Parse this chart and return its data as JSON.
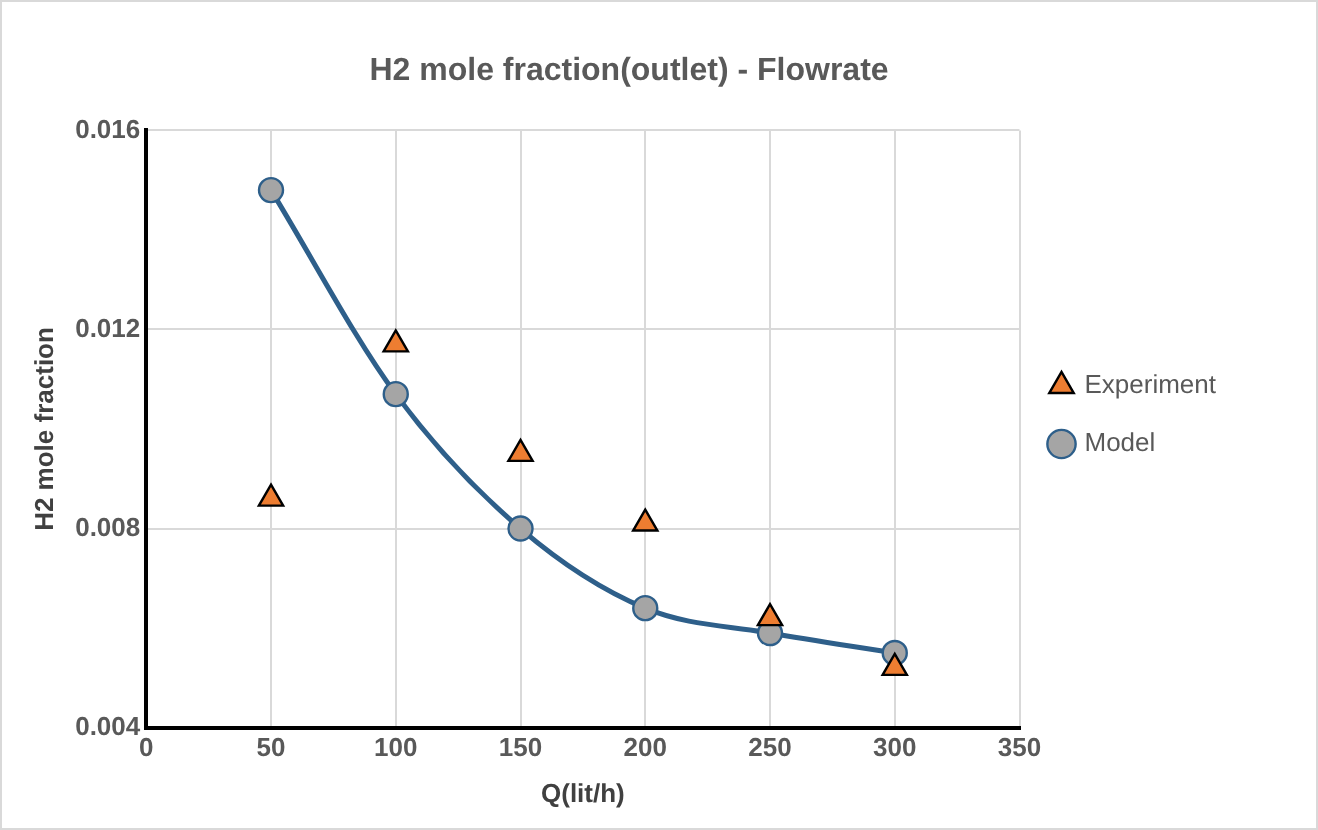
{
  "chart_data": {
    "type": "scatter",
    "title": "H2 mole fraction(outlet) - Flowrate",
    "xlabel": "Q(lit/h)",
    "ylabel": "H2 mole fraction",
    "x": [
      50,
      100,
      150,
      200,
      250,
      300
    ],
    "series": [
      {
        "name": "Experiment",
        "type": "scatter",
        "marker": "triangle",
        "color": "#ed7d31",
        "values": [
          0.0086,
          0.0117,
          0.0095,
          0.0081,
          0.0062,
          0.0052
        ]
      },
      {
        "name": "Model",
        "type": "line",
        "marker": "circle",
        "color": "#2e5f8a",
        "values": [
          0.0148,
          0.0107,
          0.008,
          0.0064,
          0.0059,
          0.0055
        ]
      }
    ],
    "xlim": [
      0,
      350
    ],
    "xticks": [
      0,
      50,
      100,
      150,
      200,
      250,
      300,
      350
    ],
    "ylim": [
      0.004,
      0.016
    ],
    "yticks": [
      0.004,
      0.008,
      0.012,
      0.016
    ],
    "grid": true,
    "legend": "right"
  }
}
